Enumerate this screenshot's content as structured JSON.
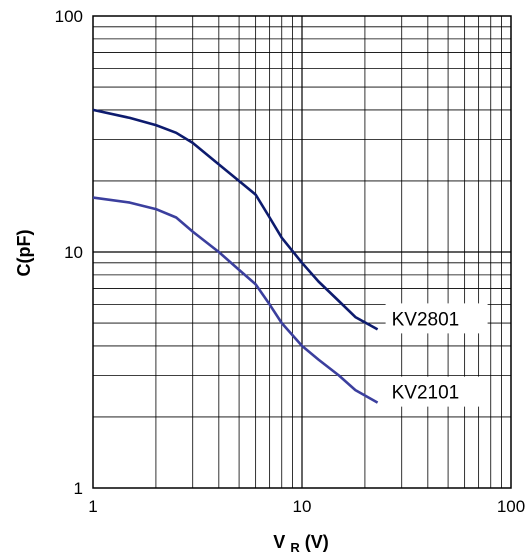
{
  "chart_data": {
    "type": "line",
    "x_scale": "log",
    "y_scale": "log",
    "xlim": [
      1,
      100
    ],
    "ylim": [
      1,
      100
    ],
    "grid": true,
    "xlabel": {
      "main": "V",
      "sub": "R",
      "tail": "(V)"
    },
    "ylabel": "C(pF)",
    "xticks": [
      {
        "value": 1,
        "label": "1"
      },
      {
        "value": 10,
        "label": "10"
      },
      {
        "value": 100,
        "label": "100"
      }
    ],
    "yticks": [
      {
        "value": 1,
        "label": "1"
      },
      {
        "value": 10,
        "label": "10"
      },
      {
        "value": 100,
        "label": "100"
      }
    ],
    "series": [
      {
        "name": "KV2801",
        "color": "#0d1b6e",
        "points": [
          [
            1,
            40
          ],
          [
            1.5,
            37
          ],
          [
            2,
            34.5
          ],
          [
            2.5,
            32
          ],
          [
            3,
            29
          ],
          [
            4,
            23.5
          ],
          [
            5,
            20
          ],
          [
            6,
            17.5
          ],
          [
            7,
            14
          ],
          [
            8,
            11.5
          ],
          [
            10,
            9
          ],
          [
            12,
            7.5
          ],
          [
            15,
            6.2
          ],
          [
            18,
            5.3
          ],
          [
            23,
            4.7
          ]
        ]
      },
      {
        "name": "KV2101",
        "color": "#3b3f9e",
        "points": [
          [
            1,
            17
          ],
          [
            1.5,
            16.2
          ],
          [
            2,
            15.2
          ],
          [
            2.5,
            14
          ],
          [
            3,
            12.2
          ],
          [
            4,
            10
          ],
          [
            5,
            8.4
          ],
          [
            6,
            7.3
          ],
          [
            7,
            6
          ],
          [
            8,
            5
          ],
          [
            10,
            4
          ],
          [
            12,
            3.5
          ],
          [
            15,
            3
          ],
          [
            18,
            2.6
          ],
          [
            23,
            2.3
          ]
        ]
      }
    ]
  }
}
